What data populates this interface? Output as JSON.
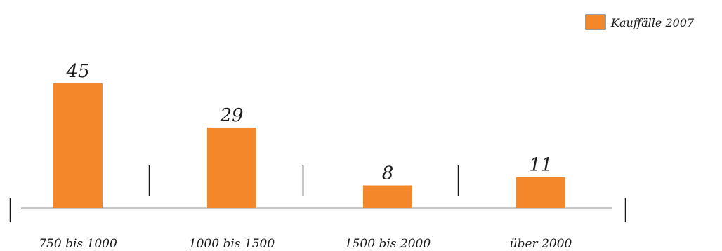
{
  "chart_data": {
    "type": "bar",
    "categories": [
      "750 bis 1000",
      "1000 bis 1500",
      "1500 bis 2000",
      "über 2000"
    ],
    "series": [
      {
        "name": "Kauffälle 2007",
        "values": [
          45,
          29,
          8,
          11
        ],
        "color": "#f5872b"
      }
    ],
    "data_labels": [
      "45",
      "29",
      "8",
      "11"
    ],
    "ylim": [
      0,
      50
    ],
    "grid": false,
    "legend_position": "top-right",
    "axis_color": "#1a1a1a"
  }
}
